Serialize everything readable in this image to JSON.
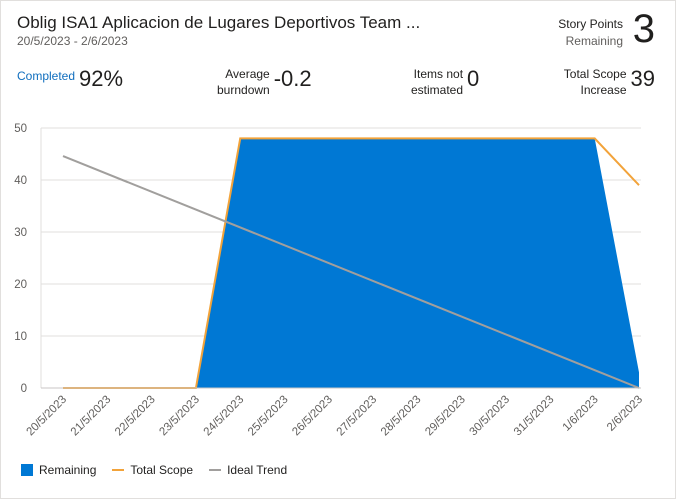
{
  "header": {
    "title": "Oblig ISA1 Aplicacion de Lugares Deportivos Team ...",
    "date_range": "20/5/2023 - 2/6/2023",
    "story_points_label": "Story Points",
    "story_points_sub": "Remaining",
    "story_points_value": "3"
  },
  "metrics": {
    "completed_label": "Completed",
    "completed_value": "92%",
    "avg_label_1": "Average",
    "avg_label_2": "burndown",
    "avg_value": "-0.2",
    "items_label_1": "Items not",
    "items_label_2": "estimated",
    "items_value": "0",
    "scope_label_1": "Total Scope",
    "scope_label_2": "Increase",
    "scope_value": "39"
  },
  "colors": {
    "remaining": "#0078d4",
    "total_scope": "#f2a33a",
    "ideal_trend": "#a19f9d"
  },
  "chart_data": {
    "type": "area",
    "categories": [
      "20/5/2023",
      "21/5/2023",
      "22/5/2023",
      "23/5/2023",
      "24/5/2023",
      "25/5/2023",
      "26/5/2023",
      "27/5/2023",
      "28/5/2023",
      "29/5/2023",
      "30/5/2023",
      "31/5/2023",
      "1/6/2023",
      "2/6/2023"
    ],
    "ylim": [
      0,
      50
    ],
    "yticks": [
      0,
      10,
      20,
      30,
      40,
      50
    ],
    "grid": true,
    "legend_position": "bottom-left",
    "series": [
      {
        "name": "Remaining",
        "kind": "area",
        "values": [
          0,
          0,
          0,
          0,
          48,
          48,
          48,
          48,
          48,
          48,
          48,
          48,
          48,
          3
        ]
      },
      {
        "name": "Total Scope",
        "kind": "line",
        "values": [
          0,
          0,
          0,
          0,
          48,
          48,
          48,
          48,
          48,
          48,
          48,
          48,
          48,
          39
        ]
      },
      {
        "name": "Ideal Trend",
        "kind": "line",
        "values": [
          44.6,
          null,
          null,
          null,
          null,
          null,
          null,
          null,
          null,
          null,
          null,
          null,
          null,
          0
        ]
      }
    ]
  }
}
